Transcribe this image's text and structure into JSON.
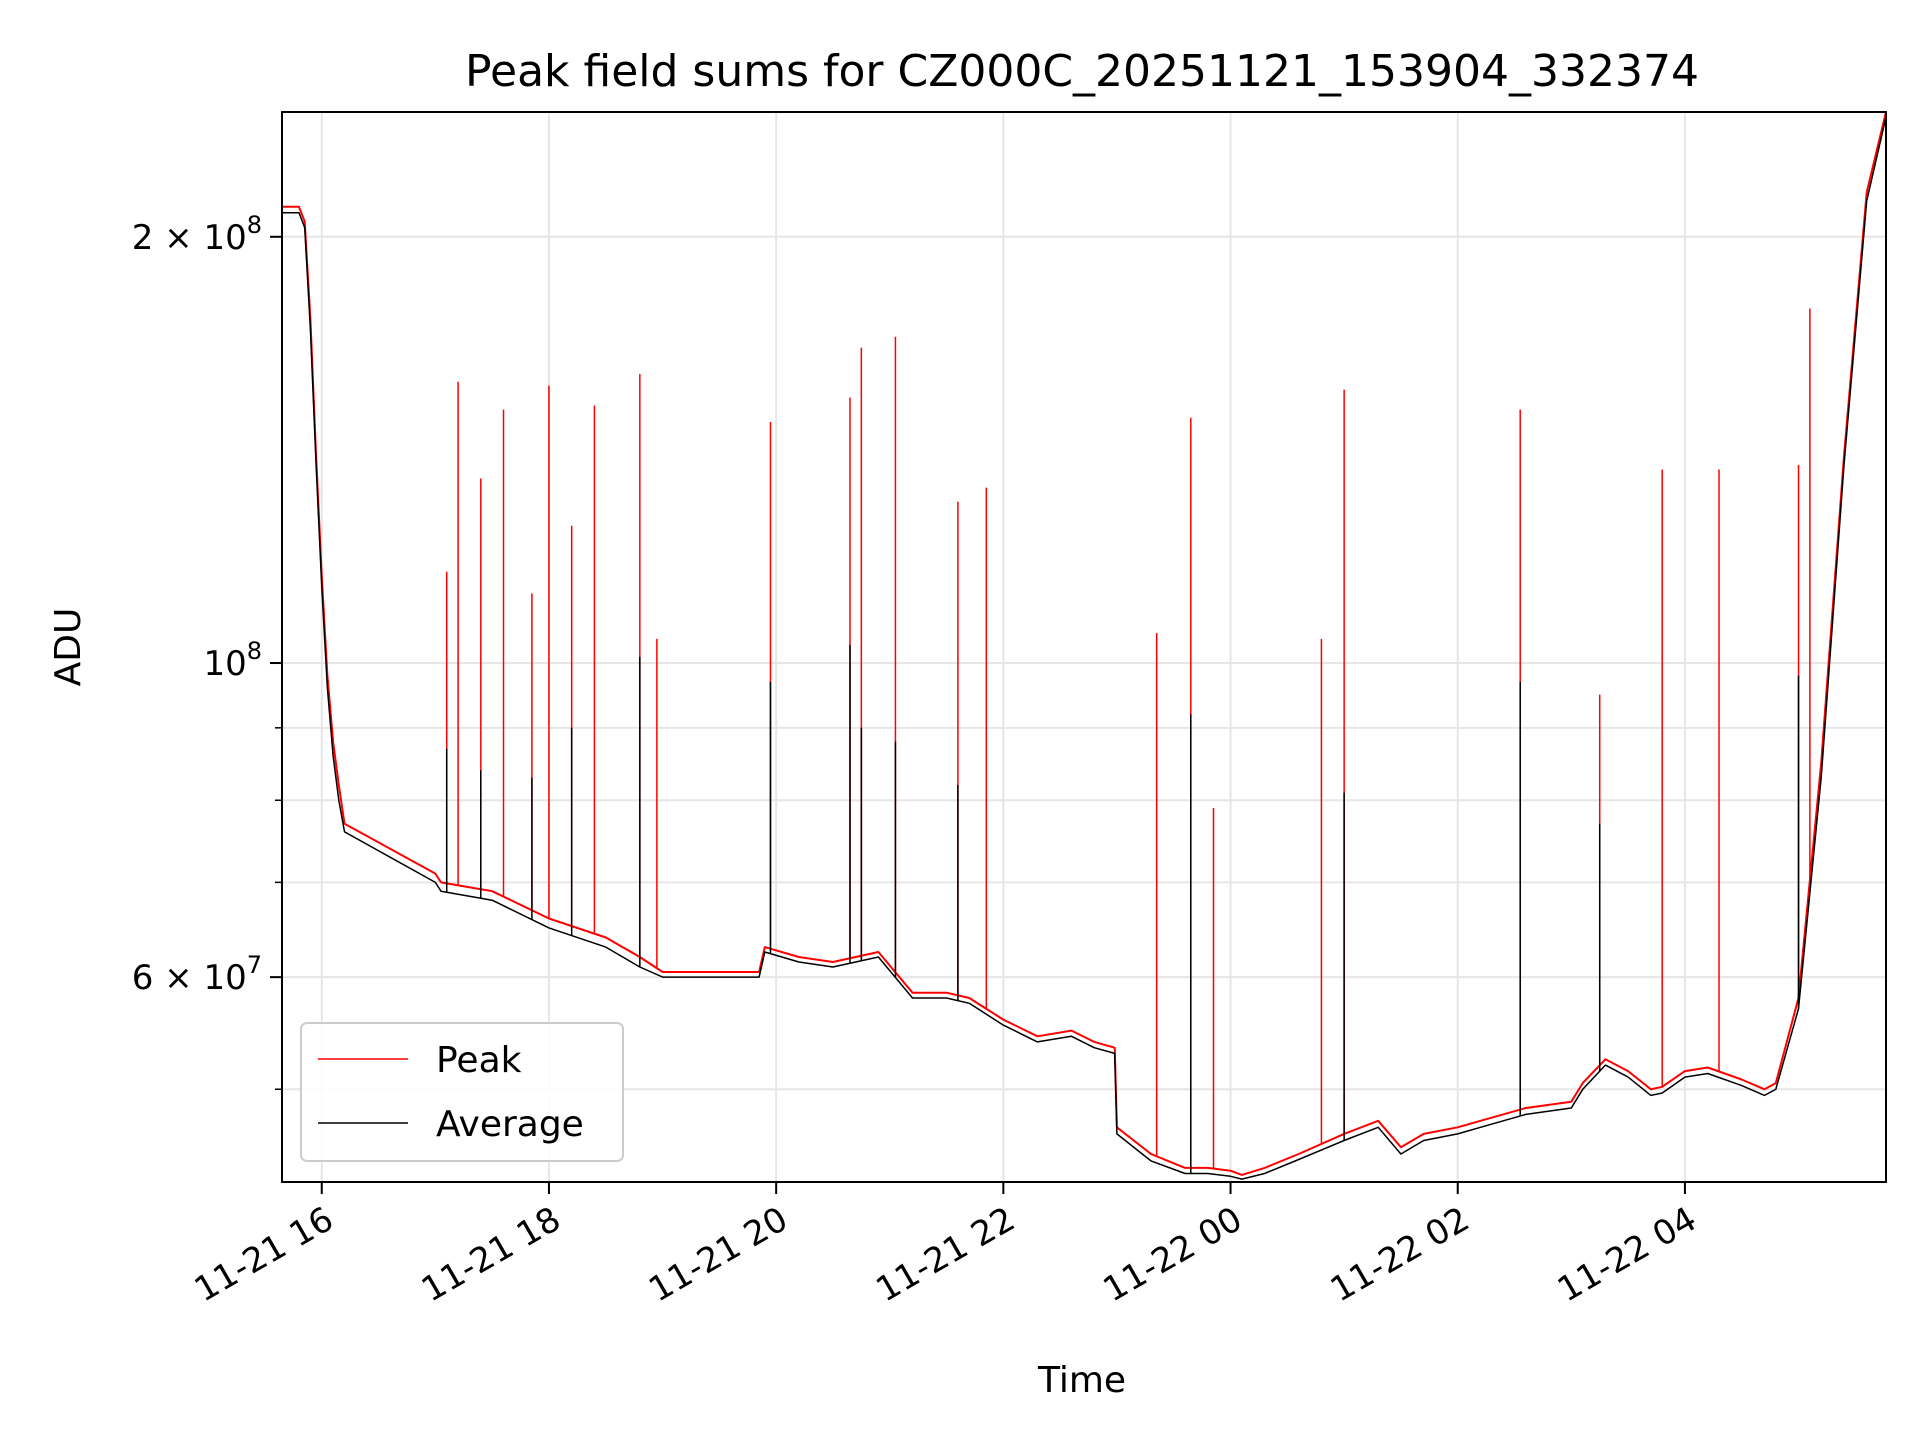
{
  "chart_data": {
    "type": "line",
    "title": "Peak field sums for CZ000C_20251121_153904_332374",
    "xlabel": "Time",
    "ylabel": "ADU",
    "yscale": "log",
    "ylim": [
      43000000,
      245000000
    ],
    "xlim_hours": [
      15.65,
      29.77
    ],
    "grid": true,
    "legend_location": "lower-left",
    "x_ticks": [
      {
        "hour": 16,
        "label": "11-21 16"
      },
      {
        "hour": 18,
        "label": "11-21 18"
      },
      {
        "hour": 20,
        "label": "11-21 20"
      },
      {
        "hour": 22,
        "label": "11-21 22"
      },
      {
        "hour": 24,
        "label": "11-22 00"
      },
      {
        "hour": 26,
        "label": "11-22 02"
      },
      {
        "hour": 28,
        "label": "11-22 04"
      }
    ],
    "y_ticks": [
      {
        "value": 60000000,
        "mantissa": "6",
        "exp": "7"
      },
      {
        "value": 100000000,
        "mantissa": "",
        "exp": "8"
      },
      {
        "value": 200000000,
        "mantissa": "2",
        "exp": "8"
      }
    ],
    "y_minor_ticks": [
      50000000,
      70000000,
      80000000,
      90000000
    ],
    "series": [
      {
        "name": "Peak",
        "color": "#ff0000",
        "x_hours": [
          15.65,
          15.8,
          15.85,
          15.9,
          15.95,
          16.0,
          16.05,
          16.1,
          16.15,
          16.2,
          17.0,
          17.05,
          17.5,
          18.0,
          18.5,
          18.8,
          19.0,
          19.85,
          19.9,
          20.2,
          20.5,
          20.9,
          21.2,
          21.5,
          21.7,
          22.0,
          22.3,
          22.6,
          22.8,
          22.98,
          23.0,
          23.3,
          23.6,
          23.8,
          24.0,
          24.1,
          24.3,
          24.6,
          25.0,
          25.3,
          25.5,
          25.7,
          26.0,
          26.2,
          26.6,
          27.0,
          27.1,
          27.3,
          27.5,
          27.7,
          27.8,
          28.0,
          28.2,
          28.5,
          28.7,
          28.8,
          29.0,
          29.2,
          29.4,
          29.6,
          29.77
        ],
        "values": [
          210000000,
          210000000,
          205000000,
          175000000,
          140000000,
          115000000,
          98000000,
          88000000,
          82000000,
          77000000,
          71000000,
          70000000,
          69000000,
          66000000,
          64000000,
          62000000,
          60500000,
          60500000,
          63000000,
          62000000,
          61500000,
          62500000,
          58500000,
          58500000,
          58000000,
          56000000,
          54500000,
          55000000,
          54000000,
          53500000,
          47000000,
          45000000,
          44000000,
          44000000,
          43800000,
          43500000,
          44000000,
          45000000,
          46500000,
          47500000,
          45500000,
          46500000,
          47000000,
          47500000,
          48500000,
          49000000,
          50500000,
          52500000,
          51500000,
          50000000,
          50200000,
          51500000,
          51800000,
          50800000,
          50000000,
          50500000,
          58000000,
          85000000,
          140000000,
          215000000,
          245000000
        ],
        "spikes": [
          {
            "x_hour": 17.1,
            "value": 116000000
          },
          {
            "x_hour": 17.2,
            "value": 158000000
          },
          {
            "x_hour": 17.4,
            "value": 135000000
          },
          {
            "x_hour": 17.6,
            "value": 151000000
          },
          {
            "x_hour": 17.85,
            "value": 112000000
          },
          {
            "x_hour": 18.0,
            "value": 157000000
          },
          {
            "x_hour": 18.2,
            "value": 125000000
          },
          {
            "x_hour": 18.4,
            "value": 152000000
          },
          {
            "x_hour": 18.8,
            "value": 160000000
          },
          {
            "x_hour": 18.95,
            "value": 104000000
          },
          {
            "x_hour": 19.95,
            "value": 148000000
          },
          {
            "x_hour": 20.65,
            "value": 154000000
          },
          {
            "x_hour": 20.75,
            "value": 167000000
          },
          {
            "x_hour": 21.05,
            "value": 170000000
          },
          {
            "x_hour": 21.6,
            "value": 130000000
          },
          {
            "x_hour": 21.85,
            "value": 133000000
          },
          {
            "x_hour": 23.35,
            "value": 105000000
          },
          {
            "x_hour": 23.65,
            "value": 149000000
          },
          {
            "x_hour": 23.85,
            "value": 79000000
          },
          {
            "x_hour": 24.8,
            "value": 104000000
          },
          {
            "x_hour": 25.0,
            "value": 156000000
          },
          {
            "x_hour": 26.55,
            "value": 151000000
          },
          {
            "x_hour": 27.25,
            "value": 95000000
          },
          {
            "x_hour": 27.8,
            "value": 137000000
          },
          {
            "x_hour": 28.3,
            "value": 137000000
          },
          {
            "x_hour": 29.0,
            "value": 138000000
          },
          {
            "x_hour": 29.1,
            "value": 178000000
          }
        ]
      },
      {
        "name": "Average",
        "color": "#000000",
        "x_hours": [
          15.65,
          15.8,
          15.85,
          15.9,
          15.95,
          16.0,
          16.05,
          16.1,
          16.15,
          16.2,
          17.0,
          17.05,
          17.5,
          18.0,
          18.5,
          18.8,
          19.0,
          19.85,
          19.9,
          20.2,
          20.5,
          20.9,
          21.2,
          21.5,
          21.7,
          22.0,
          22.3,
          22.6,
          22.8,
          22.98,
          23.0,
          23.3,
          23.6,
          23.8,
          24.0,
          24.1,
          24.3,
          24.6,
          25.0,
          25.3,
          25.5,
          25.7,
          26.0,
          26.2,
          26.6,
          27.0,
          27.1,
          27.3,
          27.5,
          27.7,
          27.8,
          28.0,
          28.2,
          28.5,
          28.7,
          28.8,
          29.0,
          29.2,
          29.4,
          29.6,
          29.77
        ],
        "values": [
          208000000,
          208000000,
          203000000,
          172000000,
          138000000,
          113000000,
          96000000,
          86000000,
          80000000,
          76000000,
          70000000,
          69000000,
          68000000,
          65000000,
          63000000,
          61000000,
          60000000,
          60000000,
          62500000,
          61500000,
          61000000,
          62000000,
          58000000,
          58000000,
          57500000,
          55500000,
          54000000,
          54500000,
          53500000,
          53000000,
          46500000,
          44500000,
          43600000,
          43600000,
          43400000,
          43200000,
          43600000,
          44600000,
          46000000,
          47000000,
          45000000,
          46000000,
          46500000,
          47000000,
          48000000,
          48500000,
          50000000,
          52000000,
          51000000,
          49500000,
          49700000,
          51000000,
          51300000,
          50300000,
          49500000,
          50000000,
          57000000,
          83000000,
          138000000,
          212000000,
          243000000
        ],
        "spikes": [
          {
            "x_hour": 17.1,
            "value": 87000000
          },
          {
            "x_hour": 17.4,
            "value": 84000000
          },
          {
            "x_hour": 17.85,
            "value": 83000000
          },
          {
            "x_hour": 18.2,
            "value": 90000000
          },
          {
            "x_hour": 18.8,
            "value": 101000000
          },
          {
            "x_hour": 19.95,
            "value": 97000000
          },
          {
            "x_hour": 20.65,
            "value": 103000000
          },
          {
            "x_hour": 20.75,
            "value": 90000000
          },
          {
            "x_hour": 21.05,
            "value": 88000000
          },
          {
            "x_hour": 21.6,
            "value": 82000000
          },
          {
            "x_hour": 23.65,
            "value": 92000000
          },
          {
            "x_hour": 25.0,
            "value": 81000000
          },
          {
            "x_hour": 26.55,
            "value": 97000000
          },
          {
            "x_hour": 27.25,
            "value": 77000000
          },
          {
            "x_hour": 29.0,
            "value": 98000000
          }
        ]
      }
    ],
    "legend": [
      {
        "label": "Peak",
        "color": "#ff0000"
      },
      {
        "label": "Average",
        "color": "#000000"
      }
    ]
  }
}
